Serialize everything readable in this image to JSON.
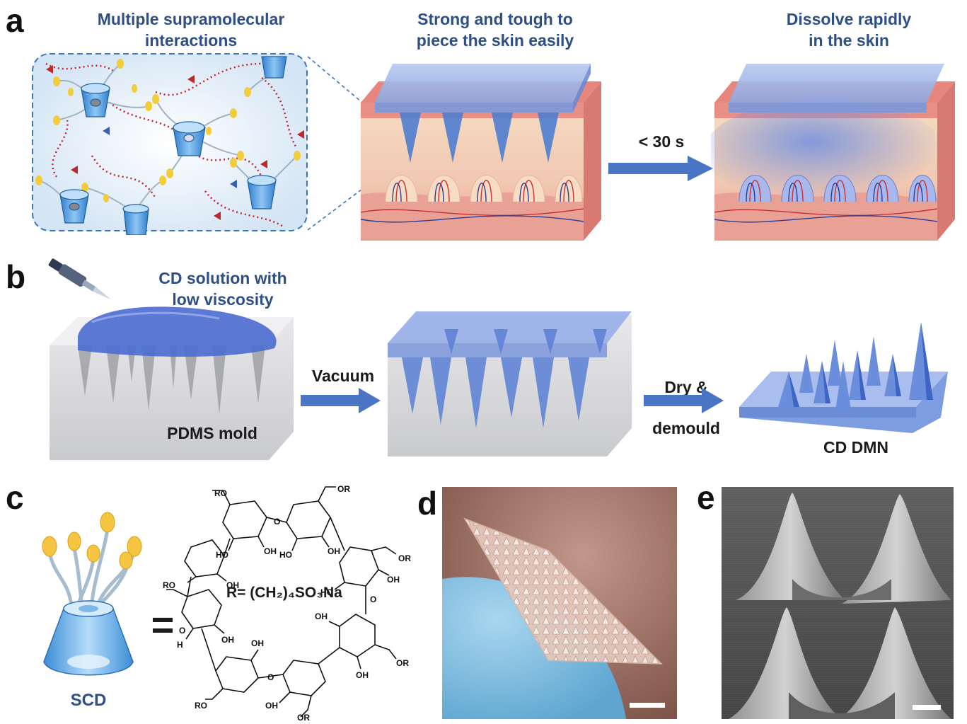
{
  "panels": {
    "a": {
      "letter": "a",
      "caption_interactions": "Multiple supramolecular\ninteractions",
      "caption_strong": "Strong and tough to\npiece the skin easily",
      "caption_dissolve": "Dissolve rapidly\nin the skin",
      "time_label": "< 30 s"
    },
    "b": {
      "letter": "b",
      "caption_solution": "CD solution with\nlow viscosity",
      "mold_label": "PDMS mold",
      "vacuum_label": "Vacuum",
      "dry_label": "Dry &\ndemould",
      "dmn_label": "CD DMN"
    },
    "c": {
      "letter": "c",
      "scd_label": "SCD",
      "equals": "=",
      "r_group": "R= (CH₂)₄SO₃Na",
      "ro": "RO",
      "or": "OR",
      "oh": "OH",
      "ho": "HO",
      "h": "H",
      "o": "O"
    },
    "d": {
      "letter": "d"
    },
    "e": {
      "letter": "e"
    }
  },
  "colors": {
    "caption_blue": "#2e4f86",
    "arrow_blue": "#4a74c4",
    "cd_blue": "#5b9bd5",
    "skin_pink": "#e8928a",
    "photo_bg": "#9b6a5c",
    "sem_gray": "#7a7a7a"
  }
}
